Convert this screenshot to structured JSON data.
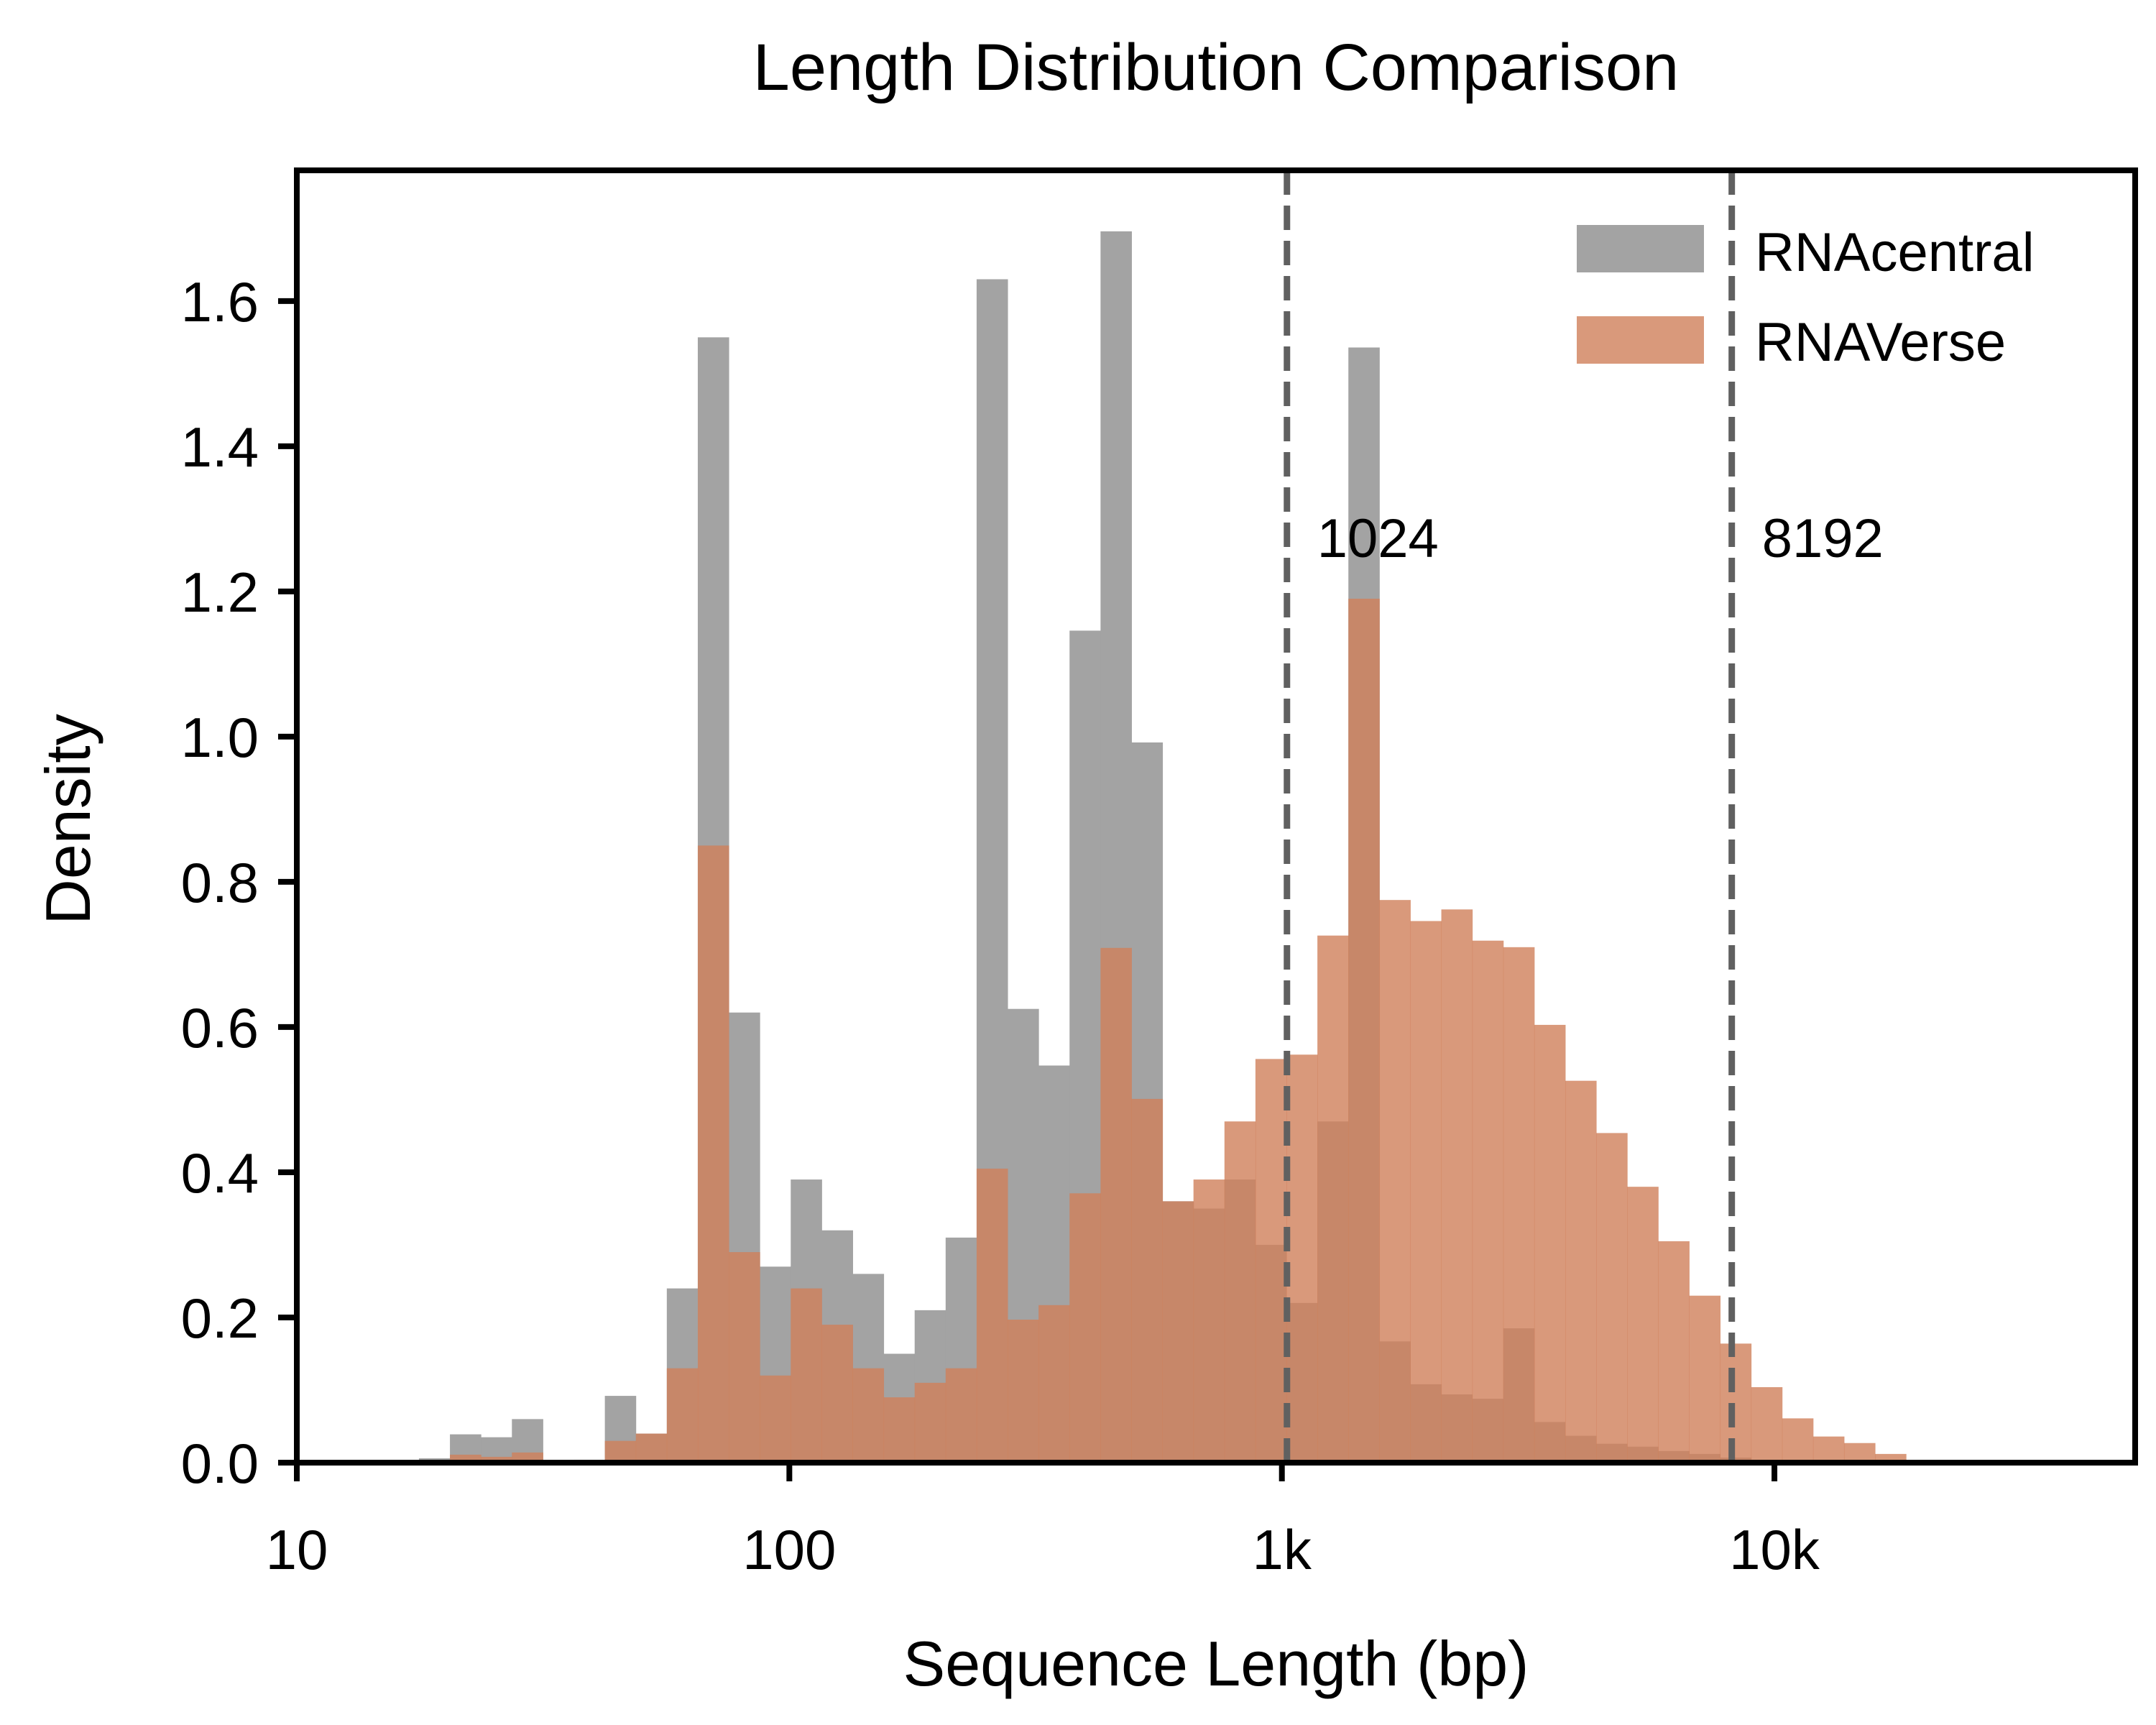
{
  "chart_data": {
    "type": "bar",
    "title": "Length Distribution Comparison",
    "xlabel": "Sequence Length (bp)",
    "ylabel": "Density",
    "x_scale": "log",
    "xlim": [
      10,
      54000
    ],
    "ylim": [
      0,
      1.78
    ],
    "grid": false,
    "legend_position": "top-right",
    "x_ticks": [
      {
        "value": 10,
        "label": "10"
      },
      {
        "value": 100,
        "label": "100"
      },
      {
        "value": 1000,
        "label": "1k"
      },
      {
        "value": 10000,
        "label": "10k"
      }
    ],
    "y_ticks": [
      {
        "value": 0.0,
        "label": "0.0"
      },
      {
        "value": 0.2,
        "label": "0.2"
      },
      {
        "value": 0.4,
        "label": "0.4"
      },
      {
        "value": 0.6,
        "label": "0.6"
      },
      {
        "value": 0.8,
        "label": "0.8"
      },
      {
        "value": 1.0,
        "label": "1.0"
      },
      {
        "value": 1.2,
        "label": "1.2"
      },
      {
        "value": 1.4,
        "label": "1.4"
      },
      {
        "value": 1.6,
        "label": "1.6"
      }
    ],
    "bin_edges_log10_start": 1.248,
    "bin_width_log10": 0.0629,
    "series": [
      {
        "name": "RNAcentral",
        "color": "#a3a3a3",
        "values": [
          0.006,
          0.039,
          0.035,
          0.06,
          0.003,
          0.004,
          0.092,
          0.04,
          0.24,
          1.55,
          0.62,
          0.27,
          0.39,
          0.32,
          0.26,
          0.15,
          0.21,
          0.31,
          1.63,
          0.625,
          0.547,
          1.146,
          1.696,
          0.992,
          0.36,
          0.35,
          0.39,
          0.3,
          0.22,
          0.47,
          1.536,
          0.167,
          0.108,
          0.094,
          0.088,
          0.185,
          0.056,
          0.037,
          0.026,
          0.022,
          0.016,
          0.012,
          0.007,
          0.002,
          0,
          0,
          0,
          0,
          0
        ]
      },
      {
        "name": "RNAVerse",
        "color": "#d0805a",
        "values": [
          0,
          0.011,
          0.008,
          0.014,
          0.002,
          0.002,
          0.03,
          0.04,
          0.13,
          0.85,
          0.29,
          0.12,
          0.24,
          0.19,
          0.13,
          0.09,
          0.11,
          0.13,
          0.405,
          0.197,
          0.217,
          0.371,
          0.709,
          0.501,
          0.36,
          0.39,
          0.47,
          0.556,
          0.562,
          0.726,
          1.19,
          0.775,
          0.746,
          0.762,
          0.719,
          0.71,
          0.603,
          0.526,
          0.454,
          0.38,
          0.305,
          0.23,
          0.164,
          0.104,
          0.061,
          0.036,
          0.027,
          0.012,
          0.002
        ]
      }
    ],
    "reference_lines": [
      {
        "value": 1024,
        "label": "1024",
        "color": "#606060",
        "style": "dashed"
      },
      {
        "value": 8192,
        "label": "8192",
        "color": "#606060",
        "style": "dashed"
      }
    ]
  }
}
